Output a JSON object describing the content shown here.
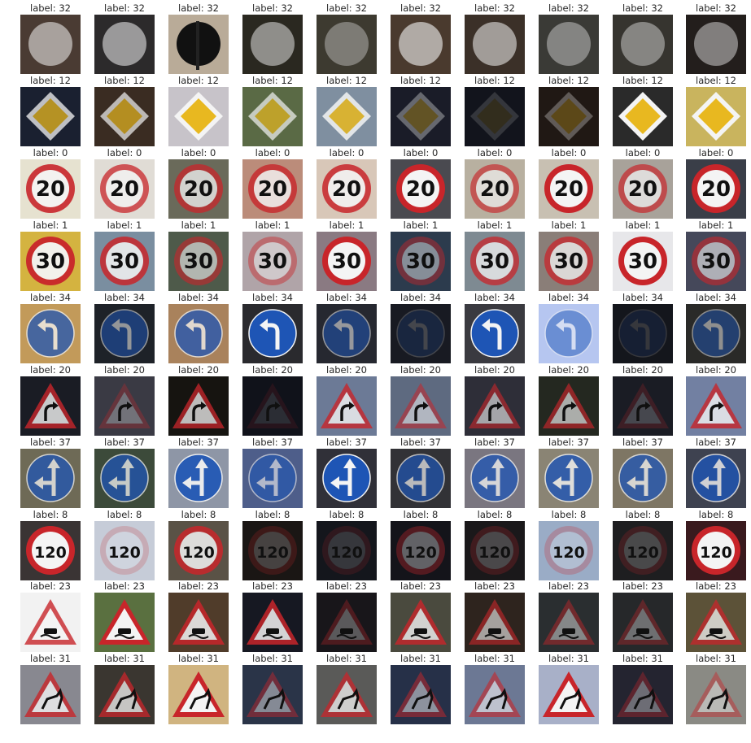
{
  "rows": [
    {
      "label": "label: 32",
      "sign": "end-limit"
    },
    {
      "label": "label: 12",
      "sign": "priority-road"
    },
    {
      "label": "label: 0",
      "sign": "speed-20"
    },
    {
      "label": "label: 1",
      "sign": "speed-30"
    },
    {
      "label": "label: 34",
      "sign": "turn-left-ahead"
    },
    {
      "label": "label: 20",
      "sign": "curve-right"
    },
    {
      "label": "label: 37",
      "sign": "straight-or-left"
    },
    {
      "label": "label: 8",
      "sign": "speed-120"
    },
    {
      "label": "label: 23",
      "sign": "slippery-road"
    },
    {
      "label": "label: 31",
      "sign": "wild-animals"
    }
  ],
  "cells_per_row": 10,
  "cells": [
    [
      {
        "bg": "#4a3b33",
        "light": 0.55
      },
      {
        "bg": "#2c2a2b",
        "light": 0.55
      },
      {
        "bg": "#b9ab98",
        "light": 0.15,
        "dark": true
      },
      {
        "bg": "#2a2820",
        "light": 0.5
      },
      {
        "bg": "#3d3a30",
        "light": 0.35
      },
      {
        "bg": "#4a3a2e",
        "light": 0.6
      },
      {
        "bg": "#3b3028",
        "light": 0.55
      },
      {
        "bg": "#3a3a36",
        "light": 0.4
      },
      {
        "bg": "#36342f",
        "light": 0.42
      },
      {
        "bg": "#231e1c",
        "light": 0.45
      }
    ],
    [
      {
        "bg": "#1a2030",
        "light": 0.75
      },
      {
        "bg": "#3a2c22",
        "light": 0.7
      },
      {
        "bg": "#c7c3c9",
        "light": 1.0
      },
      {
        "bg": "#5a6a45",
        "light": 0.7
      },
      {
        "bg": "#7f8fa0",
        "light": 0.85
      },
      {
        "bg": "#1a1c28",
        "light": 0.35
      },
      {
        "bg": "#12141c",
        "light": 0.15
      },
      {
        "bg": "#201814",
        "light": 0.3
      },
      {
        "bg": "#2a2a2a",
        "light": 1.0
      },
      {
        "bg": "#c9b45e",
        "light": 1.0
      }
    ],
    [
      {
        "bg": "#e6e2d0",
        "light": 0.9
      },
      {
        "bg": "#e0dcd5",
        "light": 0.75
      },
      {
        "bg": "#6a6a5a",
        "light": 0.75
      },
      {
        "bg": "#bb8c7a",
        "light": 0.8
      },
      {
        "bg": "#d8c7b8",
        "light": 0.85
      },
      {
        "bg": "#4a4a50",
        "light": 1.0
      },
      {
        "bg": "#b8b0a0",
        "light": 0.65
      },
      {
        "bg": "#c8c0b2",
        "light": 1.0
      },
      {
        "bg": "#a8a29a",
        "light": 0.7
      },
      {
        "bg": "#3a3e48",
        "light": 1.0
      }
    ],
    [
      {
        "bg": "#d4b340",
        "light": 0.95
      },
      {
        "bg": "#7a8ea0",
        "light": 0.85
      },
      {
        "bg": "#4e5a4a",
        "light": 0.6
      },
      {
        "bg": "#b0a4a8",
        "light": 0.45
      },
      {
        "bg": "#8a7a82",
        "light": 1.0
      },
      {
        "bg": "#2c3b4d",
        "light": 0.45
      },
      {
        "bg": "#7e8a92",
        "light": 0.75
      },
      {
        "bg": "#8a7e78",
        "light": 0.75
      },
      {
        "bg": "#e7e7ea",
        "light": 1.0
      },
      {
        "bg": "#45485a",
        "light": 0.6
      }
    ],
    [
      {
        "bg": "#c29a5a",
        "light": 0.75
      },
      {
        "bg": "#1e2228",
        "light": 0.55
      },
      {
        "bg": "#a9825c",
        "light": 0.75
      },
      {
        "bg": "#2a2a2e",
        "light": 1.0
      },
      {
        "bg": "#262830",
        "light": 0.55
      },
      {
        "bg": "#181a22",
        "light": 0.2
      },
      {
        "bg": "#3a3a40",
        "light": 1.0
      },
      {
        "bg": "#b6c6f0",
        "light": 0.5
      },
      {
        "bg": "#14161c",
        "light": 0.15
      },
      {
        "bg": "#2a2a28",
        "light": 0.5
      }
    ],
    [
      {
        "bg": "#1a1c24",
        "light": 0.8
      },
      {
        "bg": "#3a3a44",
        "light": 0.3
      },
      {
        "bg": "#161410",
        "light": 0.75
      },
      {
        "bg": "#10121a",
        "light": 0.12
      },
      {
        "bg": "#6c7a96",
        "light": 0.8
      },
      {
        "bg": "#5e6a80",
        "light": 0.55
      },
      {
        "bg": "#2e2e38",
        "light": 0.6
      },
      {
        "bg": "#242820",
        "light": 0.65
      },
      {
        "bg": "#1a1c24",
        "light": 0.2
      },
      {
        "bg": "#7280a2",
        "light": 0.8
      }
    ],
    [
      {
        "bg": "#6e6a56",
        "light": 0.75
      },
      {
        "bg": "#3c4a3a",
        "light": 0.75
      },
      {
        "bg": "#8e96a6",
        "light": 0.9
      },
      {
        "bg": "#4e5e8a",
        "light": 0.6
      },
      {
        "bg": "#303038",
        "light": 1.0
      },
      {
        "bg": "#323236",
        "light": 0.7
      },
      {
        "bg": "#7a7680",
        "light": 0.75
      },
      {
        "bg": "#8a8474",
        "light": 0.8
      },
      {
        "bg": "#7e7664",
        "light": 0.75
      },
      {
        "bg": "#3e4250",
        "light": 0.8
      }
    ],
    [
      {
        "bg": "#3a3434",
        "light": 1.0
      },
      {
        "bg": "#c6ccd8",
        "light": 0.2
      },
      {
        "bg": "#5a5246",
        "light": 0.85
      },
      {
        "bg": "#1a1614",
        "light": 0.2
      },
      {
        "bg": "#14161c",
        "light": 0.15
      },
      {
        "bg": "#14141a",
        "light": 0.35
      },
      {
        "bg": "#1a181a",
        "light": 0.22
      },
      {
        "bg": "#9aacc6",
        "light": 0.25
      },
      {
        "bg": "#1e1e20",
        "light": 0.2
      },
      {
        "bg": "#3a1a1e",
        "light": 1.0
      }
    ],
    [
      {
        "bg": "#f2f2f2",
        "light": 0.8,
        "dark": true
      },
      {
        "bg": "#5a7040",
        "light": 1.0
      },
      {
        "bg": "#503c2a",
        "light": 0.85
      },
      {
        "bg": "#161822",
        "light": 0.85
      },
      {
        "bg": "#18161a",
        "light": 0.3
      },
      {
        "bg": "#4a4a3e",
        "light": 0.8
      },
      {
        "bg": "#2e241e",
        "light": 0.6
      },
      {
        "bg": "#2a2e30",
        "light": 0.45
      },
      {
        "bg": "#26282a",
        "light": 0.35
      },
      {
        "bg": "#5c5238",
        "light": 0.75
      }
    ],
    [
      {
        "bg": "#888890",
        "light": 0.8
      },
      {
        "bg": "#3a3630",
        "light": 0.75
      },
      {
        "bg": "#d0b480",
        "light": 1.0
      },
      {
        "bg": "#2a3448",
        "light": 0.45
      },
      {
        "bg": "#5a5a58",
        "light": 0.75
      },
      {
        "bg": "#263048",
        "light": 0.5
      },
      {
        "bg": "#6c7894",
        "light": 0.6,
        "dark": true
      },
      {
        "bg": "#a8b0c8",
        "light": 1.0
      },
      {
        "bg": "#242430",
        "light": 0.35
      },
      {
        "bg": "#8a8a84",
        "light": 0.45
      }
    ]
  ],
  "colors": {
    "red": "#c8252a",
    "blue": "#1e55b5",
    "yellow": "#e8b820",
    "white": "#f4f4f4",
    "gray": "#c8c8c8",
    "black": "#101010"
  }
}
